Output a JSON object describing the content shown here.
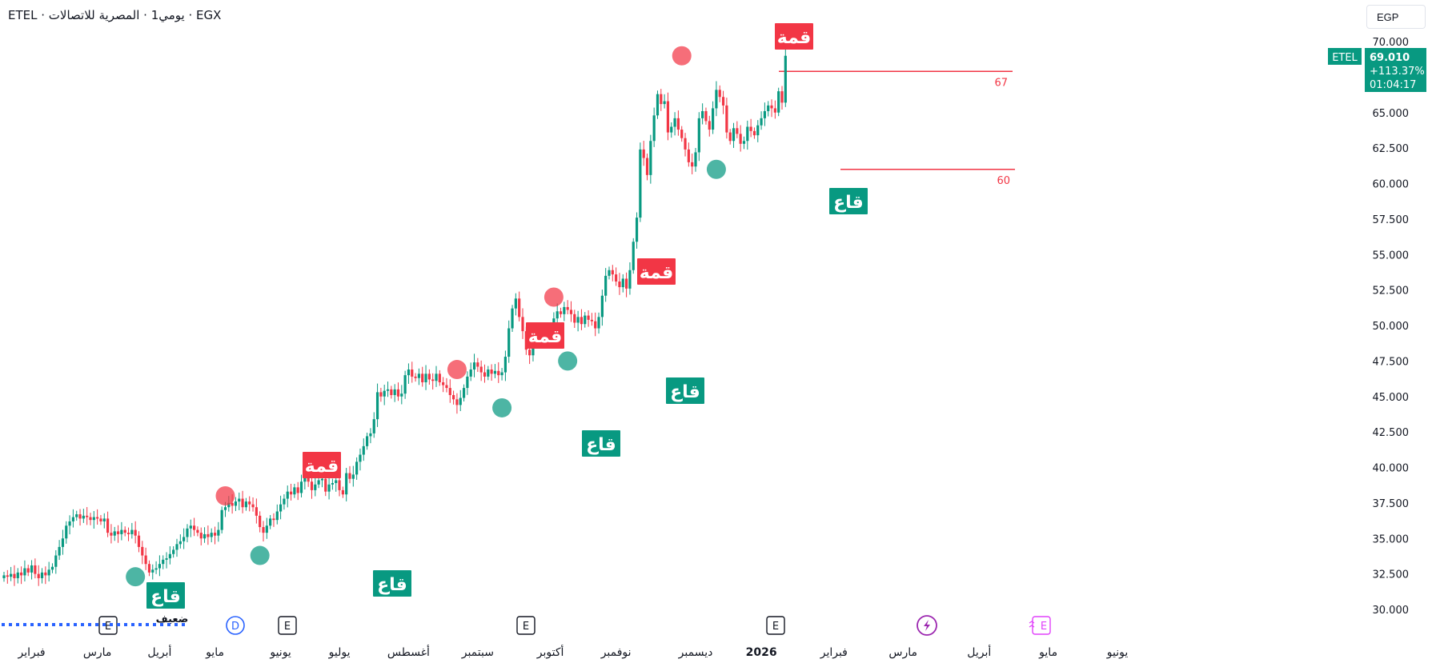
{
  "header": {
    "title": "ETEL · يومي1 · المصرية للاتصالات · EGX"
  },
  "currency_button": {
    "label": "EGP"
  },
  "price_badge": {
    "symbol": "ETEL",
    "price": "69.010",
    "change": "+113.37%",
    "countdown": "01:04:17"
  },
  "levels": [
    {
      "label": "67",
      "value": 67.9
    },
    {
      "label": "60",
      "value": 61.0
    }
  ],
  "annotations": [
    {
      "kind": "top",
      "text": "قمة",
      "x_index": 64,
      "y": 38.0
    },
    {
      "kind": "top",
      "text": "قمة",
      "x_index": 131,
      "y": 46.9
    },
    {
      "kind": "top",
      "text": "قمة",
      "x_index": 159,
      "y": 52.0
    },
    {
      "kind": "top",
      "text": "قمة",
      "x_index": 196,
      "y": 69.0
    },
    {
      "kind": "bottom",
      "text": "قاع",
      "x_index": 38,
      "y": 32.3,
      "note": "ضعيف"
    },
    {
      "kind": "bottom",
      "text": "قاع",
      "x_index": 74,
      "y": 33.8
    },
    {
      "kind": "bottom",
      "text": "قاع",
      "x_index": 144,
      "y": 44.2
    },
    {
      "kind": "bottom",
      "text": "قاع",
      "x_index": 163,
      "y": 47.5
    },
    {
      "kind": "bottom",
      "text": "قاع",
      "x_index": 206,
      "y": 61.0
    }
  ],
  "event_markers": [
    {
      "type": "E",
      "month": "مارس"
    },
    {
      "type": "D",
      "month": "مايو"
    },
    {
      "type": "E",
      "month": "مايو"
    },
    {
      "type": "E",
      "month": "سبتمبر"
    },
    {
      "type": "E",
      "month": "نوفمبر"
    },
    {
      "type": "bolt",
      "month": "2026"
    },
    {
      "type": "E-future",
      "month": "مارس"
    }
  ],
  "colors": {
    "up": "#089981",
    "down": "#f23645",
    "top_label_bg": "#f23645",
    "bottom_label_bg": "#089981",
    "level_line": "#f23645",
    "event_blue": "#2962ff",
    "event_purple": "#9c27b0",
    "event_pink": "#e040fb"
  },
  "chart_data": {
    "type": "candlestick",
    "symbol": "ETEL",
    "exchange": "EGX",
    "interval": "1D",
    "y_axis": {
      "ticks": [
        "30.000",
        "32.500",
        "35.000",
        "37.500",
        "40.000",
        "42.500",
        "45.000",
        "47.500",
        "50.000",
        "52.500",
        "55.000",
        "57.500",
        "60.000",
        "62.500",
        "65.000",
        "67.500",
        "70.000"
      ],
      "min": 30,
      "max": 70
    },
    "x_axis": {
      "ticks": [
        {
          "label": "فبراير",
          "i": 8
        },
        {
          "label": "مارس",
          "i": 27
        },
        {
          "label": "أبريل",
          "i": 45
        },
        {
          "label": "مايو",
          "i": 61
        },
        {
          "label": "يونيو",
          "i": 80
        },
        {
          "label": "يوليو",
          "i": 97
        },
        {
          "label": "أغسطس",
          "i": 117
        },
        {
          "label": "سبتمبر",
          "i": 137
        },
        {
          "label": "أكتوبر",
          "i": 158
        },
        {
          "label": "نوفمبر",
          "i": 177
        },
        {
          "label": "ديسمبر",
          "i": 200
        },
        {
          "label": "2026",
          "i": 219
        },
        {
          "label": "فبراير",
          "i": 240
        },
        {
          "label": "مارس",
          "i": 260
        },
        {
          "label": "أبريل",
          "i": 282
        },
        {
          "label": "مايو",
          "i": 302
        },
        {
          "label": "يونيو",
          "i": 322
        }
      ]
    },
    "closes": [
      32.4,
      32.3,
      32.5,
      32.2,
      32.6,
      32.4,
      32.9,
      32.6,
      33.1,
      32.5,
      32.2,
      32.6,
      32.4,
      32.8,
      33.0,
      33.8,
      34.4,
      35.0,
      35.9,
      36.2,
      36.5,
      36.7,
      36.4,
      36.6,
      36.5,
      36.3,
      36.5,
      36.4,
      36.2,
      36.4,
      35.4,
      35.2,
      35.5,
      35.3,
      35.6,
      35.4,
      35.3,
      35.6,
      35.2,
      34.4,
      33.8,
      33.2,
      32.6,
      32.8,
      32.9,
      33.2,
      33.5,
      33.6,
      33.9,
      34.2,
      34.6,
      34.8,
      35.1,
      35.7,
      35.9,
      35.6,
      35.4,
      35.0,
      35.3,
      35.1,
      35.4,
      35.2,
      35.6,
      37.0,
      37.2,
      37.5,
      37.3,
      37.6,
      37.8,
      37.2,
      37.6,
      37.4,
      37.2,
      36.6,
      35.8,
      35.4,
      35.9,
      36.4,
      36.3,
      36.9,
      37.4,
      37.8,
      38.3,
      38.1,
      38.6,
      38.2,
      39.0,
      39.4,
      39.0,
      38.4,
      38.8,
      39.1,
      39.2,
      38.3,
      38.8,
      38.9,
      39.1,
      38.4,
      38.1,
      39.6,
      39.2,
      39.5,
      40.4,
      40.9,
      41.5,
      42.2,
      42.4,
      43.4,
      45.3,
      45.0,
      45.4,
      45.5,
      45.1,
      45.5,
      45.0,
      45.2,
      46.5,
      46.9,
      46.4,
      46.3,
      46.6,
      46.0,
      46.6,
      46.2,
      46.1,
      46.6,
      46.0,
      45.8,
      45.6,
      45.1,
      44.8,
      44.4,
      44.9,
      45.6,
      46.4,
      46.9,
      47.4,
      47.1,
      46.7,
      46.4,
      46.9,
      46.6,
      46.8,
      46.5,
      46.7,
      47.8,
      49.8,
      51.2,
      51.9,
      50.6,
      49.6,
      48.3,
      47.9,
      49.2,
      49.6,
      48.9,
      49.6,
      49.2,
      49.6,
      50.5,
      51.0,
      50.8,
      51.3,
      51.1,
      50.8,
      50.2,
      50.6,
      50.1,
      50.7,
      50.4,
      50.3,
      49.8,
      50.6,
      52.1,
      53.5,
      53.9,
      53.6,
      53.1,
      52.7,
      53.3,
      52.6,
      53.9,
      55.9,
      57.6,
      62.4,
      61.8,
      60.6,
      63.0,
      64.8,
      66.3,
      65.6,
      65.8,
      63.6,
      64.0,
      64.6,
      63.8,
      63.2,
      62.4,
      61.5,
      61.2,
      62.2,
      64.6,
      65.1,
      64.4,
      63.8,
      65.3,
      66.6,
      66.1,
      65.5,
      63.6,
      63.0,
      63.9,
      63.5,
      62.8,
      63.0,
      64.0,
      63.7,
      63.4,
      64.1,
      64.6,
      65.1,
      65.5,
      65.3,
      65.0,
      66.5,
      65.7,
      69.0
    ],
    "last_price": 69.01,
    "change_pct": "+113.37%"
  }
}
